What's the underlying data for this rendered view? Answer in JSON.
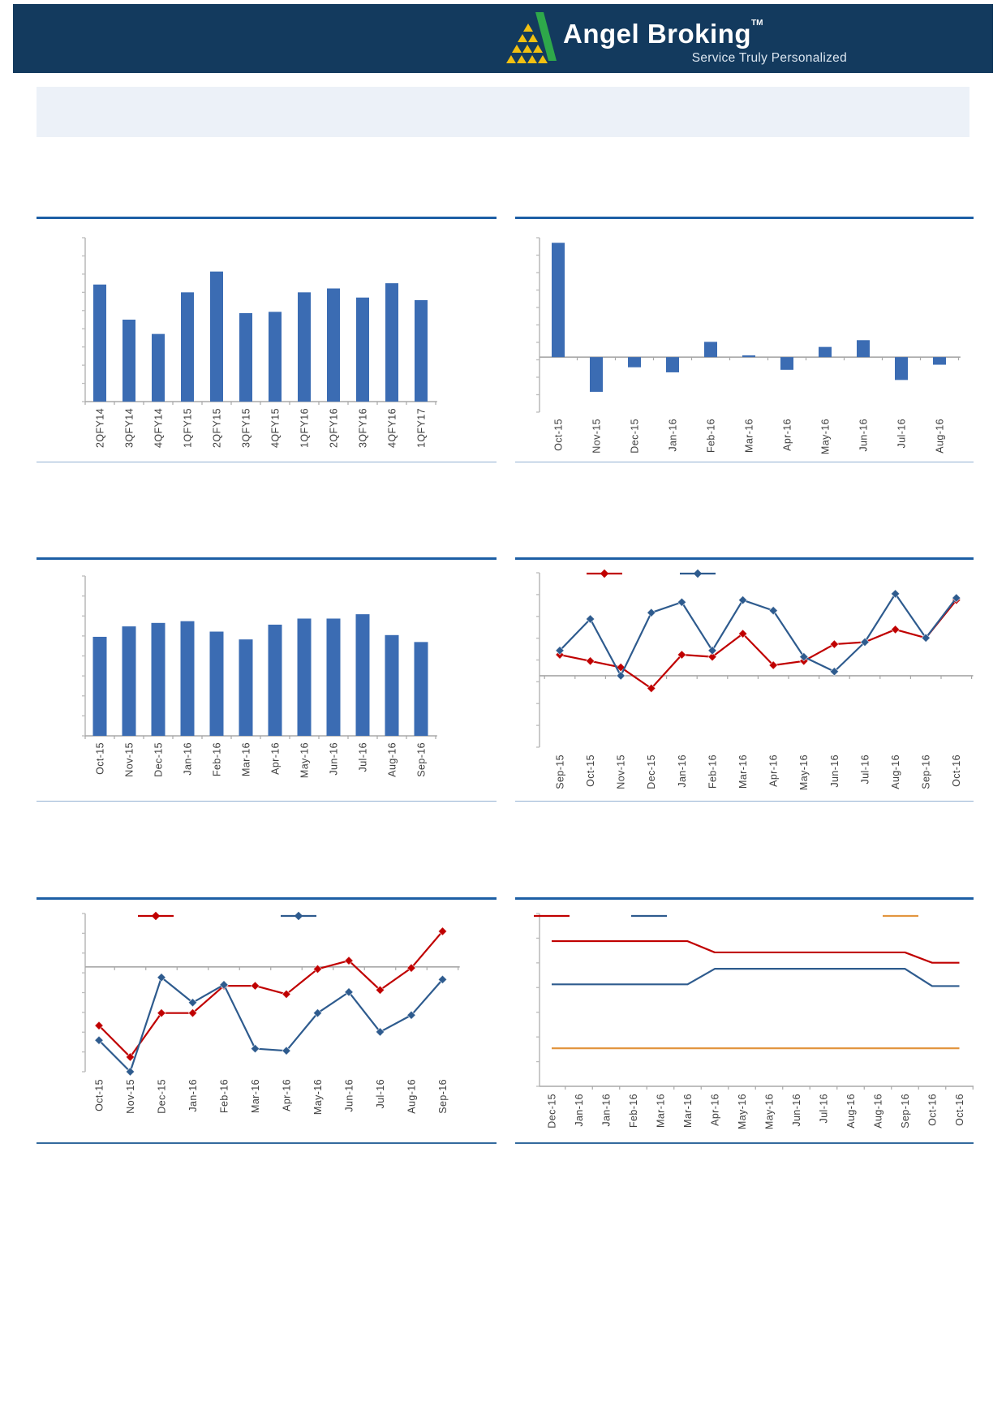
{
  "header": {
    "brand": "Angel Broking",
    "trademark": "TM",
    "tagline": "Service Truly Personalized",
    "brand_navy": "#133A5E",
    "logo_green": "#2EA84A",
    "logo_yellow": "#F2C011"
  },
  "banner": {
    "text": ""
  },
  "colors": {
    "bar_blue": "#3B6CB3",
    "line_blue": "#2E5B8E",
    "line_red": "#C00000",
    "line_orange": "#E2953F",
    "axis_gray": "#BDBDBD",
    "baseline_gray": "#A8A8A8",
    "label_gray": "#3F3F3F",
    "rule_dark_blue": "#1D5FA5"
  },
  "chart_data": [
    {
      "type": "bar",
      "title": "",
      "categories": [
        "2QFY14",
        "3QFY14",
        "4QFY14",
        "1QFY15",
        "2QFY15",
        "3QFY15",
        "4QFY15",
        "1QFY16",
        "2QFY16",
        "3QFY16",
        "4QFY16",
        "1QFY17"
      ],
      "values": [
        9.0,
        6.3,
        5.2,
        8.4,
        10.0,
        6.8,
        6.9,
        8.4,
        8.7,
        8.0,
        9.1,
        7.8
      ],
      "ylim": [
        0,
        12.6
      ],
      "grid": false,
      "bar_color": "#3B6CB3",
      "y_tick_labels_visible": false
    },
    {
      "type": "bar",
      "title": "",
      "categories": [
        "Oct-15",
        "Nov-15",
        "Dec-15",
        "Jan-16",
        "Feb-16",
        "Mar-16",
        "Apr-16",
        "May-16",
        "Jun-16",
        "Jul-16",
        "Aug-16"
      ],
      "values": [
        13.5,
        -4.1,
        -1.2,
        -1.8,
        1.8,
        0.2,
        -1.5,
        1.2,
        2.0,
        -2.7,
        -0.9
      ],
      "ylim": [
        -6.5,
        14.1
      ],
      "grid": false,
      "bar_color": "#3B6CB3",
      "y_tick_labels_visible": false
    },
    {
      "type": "bar",
      "title": "",
      "categories": [
        "Oct-15",
        "Nov-15",
        "Dec-15",
        "Jan-16",
        "Feb-16",
        "Mar-16",
        "Apr-16",
        "May-16",
        "Jun-16",
        "Jul-16",
        "Aug-16",
        "Sep-16"
      ],
      "values": [
        57,
        63,
        65,
        66,
        60,
        55.5,
        64,
        67.5,
        67.5,
        70,
        58,
        54
      ],
      "ylim": [
        0,
        92
      ],
      "grid": false,
      "bar_color": "#3B6CB3",
      "y_tick_labels_visible": false
    },
    {
      "type": "line",
      "title": "",
      "categories": [
        "Sep-15",
        "Oct-15",
        "Nov-15",
        "Dec-15",
        "Jan-16",
        "Feb-16",
        "Mar-16",
        "Apr-16",
        "May-16",
        "Jun-16",
        "Jul-16",
        "Aug-16",
        "Sep-16",
        "Oct-16"
      ],
      "series": [
        {
          "name": "",
          "color": "#C00000",
          "marker": "diamond",
          "values": [
            1.0,
            0.7,
            0.4,
            -0.6,
            1.0,
            0.9,
            2.0,
            0.5,
            0.7,
            1.5,
            1.6,
            2.2,
            1.8,
            3.6
          ]
        },
        {
          "name": "",
          "color": "#2E5B8E",
          "marker": "diamond",
          "values": [
            1.2,
            2.7,
            0.0,
            3.0,
            3.5,
            1.2,
            3.6,
            3.1,
            0.9,
            0.2,
            1.6,
            3.9,
            1.8,
            3.7
          ]
        }
      ],
      "ylim": [
        -3.4,
        4.9
      ],
      "grid": false,
      "legend_position": "top",
      "legend_labels": [
        "",
        ""
      ],
      "y_tick_labels_visible": false
    },
    {
      "type": "line",
      "title": "",
      "categories": [
        "Oct-15",
        "Nov-15",
        "Dec-15",
        "Jan-16",
        "Feb-16",
        "Mar-16",
        "Apr-16",
        "May-16",
        "Jun-16",
        "Jul-16",
        "Aug-16",
        "Sep-16"
      ],
      "series": [
        {
          "name": "",
          "color": "#C00000",
          "marker": "diamond",
          "values": [
            -2.8,
            -4.3,
            -2.2,
            -2.2,
            -0.9,
            -0.9,
            -1.3,
            -0.1,
            0.3,
            -1.1,
            -0.05,
            1.7
          ]
        },
        {
          "name": "",
          "color": "#2E5B8E",
          "marker": "diamond",
          "values": [
            -3.5,
            -5.0,
            -0.5,
            -1.7,
            -0.85,
            -3.9,
            -4.0,
            -2.2,
            -1.2,
            -3.1,
            -2.3,
            -0.6
          ]
        }
      ],
      "ylim": [
        -5.0,
        2.55
      ],
      "grid": false,
      "legend_position": "top",
      "legend_labels": [
        "",
        ""
      ],
      "y_tick_labels_visible": false
    },
    {
      "type": "line",
      "title": "",
      "categories": [
        "Dec-15",
        "Jan-16",
        "Jan-16",
        "Feb-16",
        "Mar-16",
        "Mar-16",
        "Apr-16",
        "May-16",
        "May-16",
        "Jun-16",
        "Jul-16",
        "Aug-16",
        "Aug-16",
        "Sep-16",
        "Oct-16",
        "Oct-16"
      ],
      "series": [
        {
          "name": "",
          "color": "#C00000",
          "marker": "none",
          "values": [
            84,
            84,
            84,
            84,
            84,
            84,
            77.5,
            77.5,
            77.5,
            77.5,
            77.5,
            77.5,
            77.5,
            77.5,
            71.5,
            71.5
          ]
        },
        {
          "name": "",
          "color": "#2E5B8E",
          "marker": "none",
          "values": [
            59,
            59,
            59,
            59,
            59,
            59,
            68,
            68,
            68,
            68,
            68,
            68,
            68,
            68,
            58,
            58
          ]
        },
        {
          "name": "",
          "color": "#E2953F",
          "marker": "none",
          "values": [
            22,
            22,
            22,
            22,
            22,
            22,
            22,
            22,
            22,
            22,
            22,
            22,
            22,
            22,
            22,
            22
          ]
        }
      ],
      "ylim": [
        0,
        100
      ],
      "grid": false,
      "legend_position": "top",
      "legend_labels": [
        "",
        "",
        ""
      ],
      "y_tick_labels_visible": false
    }
  ]
}
